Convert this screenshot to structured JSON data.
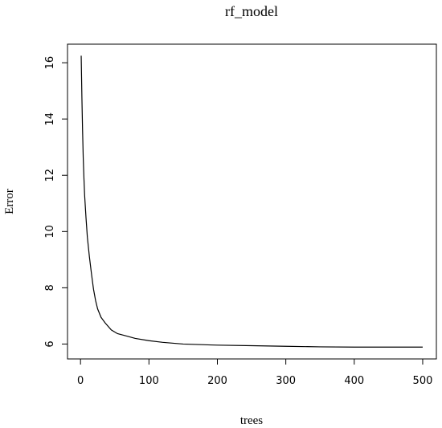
{
  "chart_data": {
    "type": "line",
    "title": "rf_model",
    "x_label": "trees",
    "y_label": "Error",
    "x": [
      1,
      2,
      3,
      4,
      5,
      6,
      8,
      10,
      13,
      16,
      19,
      22,
      25,
      30,
      36,
      45,
      54,
      65,
      80,
      100,
      120,
      150,
      200,
      250,
      300,
      350,
      400,
      450,
      500
    ],
    "series": [
      {
        "color": "#000000",
        "values": [
          16.25,
          14.8,
          13.6,
          12.6,
          11.9,
          11.3,
          10.5,
          9.8,
          9.1,
          8.5,
          7.95,
          7.55,
          7.25,
          6.95,
          6.75,
          6.5,
          6.37,
          6.3,
          6.2,
          6.12,
          6.06,
          6.0,
          5.96,
          5.94,
          5.92,
          5.9,
          5.89,
          5.89,
          5.89
        ]
      }
    ],
    "xlim": [
      -19,
      520
    ],
    "xticks": [
      0,
      100,
      200,
      300,
      400,
      500
    ],
    "ylim": [
      5.47,
      16.66
    ],
    "yticks": [
      6,
      8,
      10,
      12,
      14,
      16
    ]
  }
}
